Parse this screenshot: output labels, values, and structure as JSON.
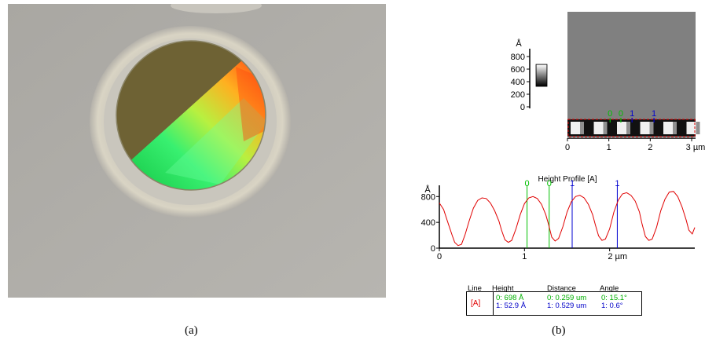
{
  "figure": {
    "caption_a": "(a)",
    "caption_b": "(b)"
  },
  "afm_image": {
    "scale_unit": "Å",
    "scale_ticks": [
      "800",
      "600",
      "400",
      "200",
      "0"
    ],
    "x_ticks": [
      "0",
      "1",
      "2",
      "3 µm"
    ],
    "marker_labels": [
      "0",
      "0",
      "1",
      "1"
    ]
  },
  "chart_data": {
    "type": "line",
    "title": "Height Profile [A]",
    "ylabel": "Å",
    "ylim": [
      0,
      950
    ],
    "xlim": [
      0,
      3.0
    ],
    "x_ticks": [
      0,
      1,
      2
    ],
    "x_tick_labels": [
      "0",
      "1",
      "2 µm"
    ],
    "y_ticks": [
      0,
      400,
      800
    ],
    "y_tick_labels": [
      "0",
      "400",
      "800"
    ],
    "series": [
      {
        "color": "#e00000",
        "x": [
          0.0,
          0.05,
          0.1,
          0.15,
          0.18,
          0.22,
          0.26,
          0.3,
          0.35,
          0.4,
          0.45,
          0.5,
          0.55,
          0.6,
          0.65,
          0.7,
          0.73,
          0.77,
          0.81,
          0.85,
          0.9,
          0.95,
          1.0,
          1.05,
          1.1,
          1.15,
          1.2,
          1.25,
          1.28,
          1.32,
          1.36,
          1.4,
          1.45,
          1.5,
          1.55,
          1.6,
          1.65,
          1.7,
          1.75,
          1.8,
          1.83,
          1.87,
          1.91,
          1.95,
          2.0,
          2.05,
          2.1,
          2.15,
          2.2,
          2.25,
          2.3,
          2.35,
          2.38,
          2.42,
          2.46,
          2.5,
          2.55,
          2.6,
          2.65,
          2.7,
          2.75,
          2.8,
          2.85,
          2.9,
          2.93,
          2.97,
          3.0
        ],
        "y": [
          700,
          600,
          400,
          200,
          90,
          40,
          60,
          200,
          420,
          620,
          740,
          780,
          770,
          700,
          580,
          420,
          280,
          130,
          90,
          120,
          300,
          520,
          690,
          780,
          800,
          770,
          680,
          520,
          380,
          170,
          110,
          150,
          330,
          560,
          720,
          800,
          820,
          780,
          680,
          520,
          370,
          190,
          120,
          140,
          300,
          560,
          740,
          840,
          860,
          820,
          730,
          560,
          380,
          180,
          120,
          140,
          320,
          580,
          760,
          870,
          880,
          800,
          640,
          430,
          280,
          220,
          320
        ]
      }
    ],
    "cursors": [
      {
        "label": "0",
        "x": 1.03,
        "color": "#00c000"
      },
      {
        "label": "0",
        "x": 1.29,
        "color": "#00c000"
      },
      {
        "label": "1",
        "x": 1.56,
        "color": "#0000d0"
      },
      {
        "label": "1",
        "x": 2.09,
        "color": "#0000d0"
      }
    ]
  },
  "measure_table": {
    "headers": [
      "Line",
      "Height",
      "Distance",
      "Angle"
    ],
    "line_label": "[A]",
    "rows": [
      {
        "height": "0:  698 Å",
        "distance": "0:  0.259 um",
        "angle": "0:  15.1°",
        "color": "#00b000"
      },
      {
        "height": "1:  52.9 Å",
        "distance": "1:  0.529 um",
        "angle": "1:  0.6°",
        "color": "#0000c8"
      }
    ]
  }
}
